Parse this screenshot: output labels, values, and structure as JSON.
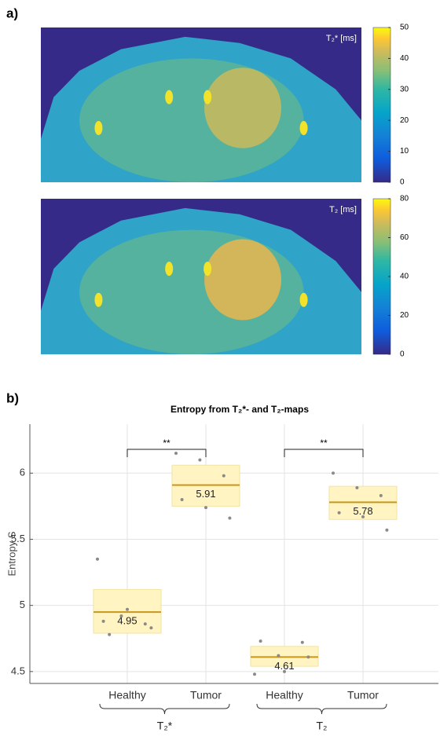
{
  "panel_labels": [
    "a)",
    "b)"
  ],
  "chart_data": [
    {
      "type": "heatmap",
      "colorbar_label": "T₂* [ms]",
      "ylim": [
        0,
        50
      ],
      "yticks": [
        0,
        10,
        20,
        30,
        40,
        50
      ]
    },
    {
      "type": "heatmap",
      "colorbar_label": "T₂ [ms]",
      "ylim": [
        0,
        80
      ],
      "yticks": [
        0,
        20,
        40,
        60,
        80
      ]
    },
    {
      "type": "box",
      "title": "Entropy from T₂*- and T₂-maps",
      "ylabel": "Entropy S",
      "categories": [
        "Healthy",
        "Tumor",
        "Healthy",
        "Tumor"
      ],
      "groups": [
        "T₂*",
        "T₂"
      ],
      "significance": [
        "**",
        "**"
      ],
      "medians": [
        4.95,
        5.91,
        4.61,
        5.78
      ],
      "q1": [
        4.79,
        5.75,
        4.54,
        5.65
      ],
      "q3": [
        5.12,
        6.06,
        4.69,
        5.9
      ],
      "points": [
        [
          5.35,
          4.92,
          4.86,
          4.88,
          4.97,
          4.83,
          4.78
        ],
        [
          6.15,
          6.1,
          5.98,
          5.8,
          5.74,
          5.66
        ],
        [
          4.48,
          4.62,
          4.72,
          4.73,
          4.5,
          4.61
        ],
        [
          6.0,
          5.89,
          5.83,
          5.7,
          5.67,
          5.57
        ]
      ],
      "box_color": "#fff4c2",
      "box_edge_color": "#f2e3a0",
      "median_color": "#c9961a",
      "point_color": "#8a8a8a",
      "ylim": [
        4.41,
        6.37
      ],
      "yticks": [
        4.5,
        5,
        5.5,
        6
      ],
      "grid": true
    }
  ]
}
